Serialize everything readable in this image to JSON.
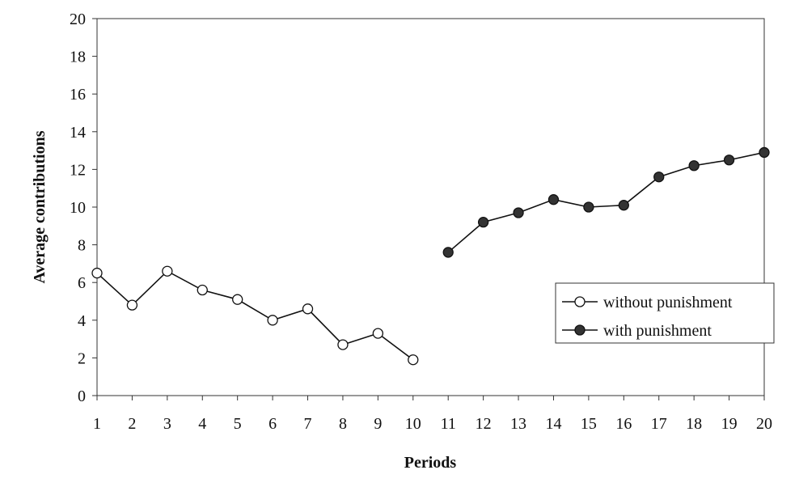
{
  "chart_data": {
    "type": "line",
    "title": "",
    "xlabel": "Periods",
    "ylabel": "Average contributions",
    "x": [
      1,
      2,
      3,
      4,
      5,
      6,
      7,
      8,
      9,
      10,
      11,
      12,
      13,
      14,
      15,
      16,
      17,
      18,
      19,
      20
    ],
    "xlim": [
      1,
      20
    ],
    "ylim": [
      0,
      20
    ],
    "yticks": [
      0,
      2,
      4,
      6,
      8,
      10,
      12,
      14,
      16,
      18,
      20
    ],
    "grid": false,
    "legend_position": "right",
    "series": [
      {
        "name": "without punishment",
        "marker": "open-circle",
        "color": "#111111",
        "x": [
          1,
          2,
          3,
          4,
          5,
          6,
          7,
          8,
          9,
          10
        ],
        "values": [
          6.5,
          4.8,
          6.6,
          5.6,
          5.1,
          4.0,
          4.6,
          2.7,
          3.3,
          1.9
        ]
      },
      {
        "name": "with punishment",
        "marker": "filled-circle",
        "color": "#111111",
        "x": [
          11,
          12,
          13,
          14,
          15,
          16,
          17,
          18,
          19,
          20
        ],
        "values": [
          7.6,
          9.2,
          9.7,
          10.4,
          10.0,
          10.1,
          11.6,
          12.2,
          12.5,
          12.9
        ]
      }
    ]
  }
}
